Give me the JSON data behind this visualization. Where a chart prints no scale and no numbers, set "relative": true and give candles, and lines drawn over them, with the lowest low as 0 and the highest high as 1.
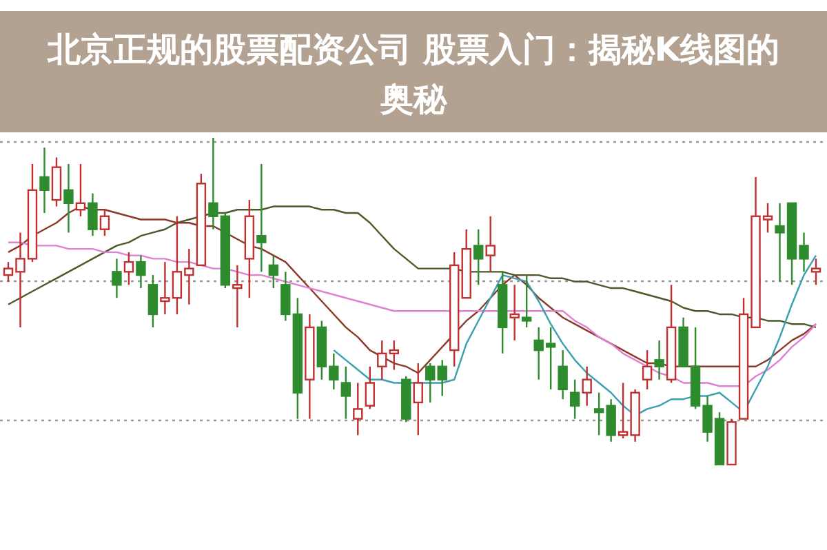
{
  "chart_data": {
    "type": "candlestick",
    "title": "北京正规的股票配资公司 股票入门：揭秘K线图的奥秘",
    "relative": true,
    "grid": true,
    "categories": [
      null,
      null,
      null,
      null,
      null,
      null,
      null,
      null,
      null,
      null,
      null,
      null,
      null,
      null,
      null,
      null,
      null,
      null,
      null,
      null,
      null,
      null,
      null,
      null,
      null,
      null,
      null,
      null,
      null,
      null,
      null,
      null,
      null,
      null,
      null,
      null,
      null,
      null,
      null,
      null,
      null,
      null,
      null,
      null,
      null,
      null,
      null,
      null,
      null,
      null,
      null,
      null,
      null,
      null,
      null,
      null,
      null,
      null,
      null,
      null,
      null,
      null,
      null,
      null,
      null,
      null,
      null,
      null
    ],
    "ohlc": [
      [
        0.58,
        0.62,
        0.56,
        0.6
      ],
      [
        0.59,
        0.71,
        0.42,
        0.63
      ],
      [
        0.63,
        0.92,
        0.62,
        0.84
      ],
      [
        0.88,
        0.97,
        0.77,
        0.84
      ],
      [
        0.81,
        0.94,
        0.79,
        0.91
      ],
      [
        0.84,
        0.92,
        0.71,
        0.8
      ],
      [
        0.78,
        0.92,
        0.76,
        0.8
      ],
      [
        0.8,
        0.83,
        0.7,
        0.72
      ],
      [
        0.72,
        0.78,
        0.7,
        0.76
      ],
      [
        0.59,
        0.63,
        0.51,
        0.55
      ],
      [
        0.59,
        0.65,
        0.55,
        0.62
      ],
      [
        0.62,
        0.64,
        0.54,
        0.58
      ],
      [
        0.55,
        0.58,
        0.42,
        0.46
      ],
      [
        0.5,
        0.62,
        0.46,
        0.51
      ],
      [
        0.51,
        0.76,
        0.46,
        0.59
      ],
      [
        0.58,
        0.66,
        0.49,
        0.6
      ],
      [
        0.61,
        0.89,
        0.61,
        0.86
      ],
      [
        0.8,
        1.0,
        0.72,
        0.76
      ],
      [
        0.76,
        0.77,
        0.54,
        0.55
      ],
      [
        0.54,
        0.61,
        0.42,
        0.55
      ],
      [
        0.63,
        0.81,
        0.51,
        0.76
      ],
      [
        0.7,
        0.92,
        0.59,
        0.68
      ],
      [
        0.61,
        0.64,
        0.54,
        0.58
      ],
      [
        0.55,
        0.59,
        0.44,
        0.46
      ],
      [
        0.46,
        0.51,
        0.14,
        0.22
      ],
      [
        0.26,
        0.46,
        0.14,
        0.42
      ],
      [
        0.42,
        0.44,
        0.26,
        0.3
      ],
      [
        0.3,
        0.34,
        0.23,
        0.26
      ],
      [
        0.25,
        0.3,
        0.14,
        0.21
      ],
      [
        0.14,
        0.25,
        0.09,
        0.17
      ],
      [
        0.18,
        0.3,
        0.17,
        0.25
      ],
      [
        0.3,
        0.38,
        0.26,
        0.34
      ],
      [
        0.34,
        0.38,
        0.29,
        0.35
      ],
      [
        0.26,
        0.27,
        0.13,
        0.14
      ],
      [
        0.19,
        0.31,
        0.09,
        0.25
      ],
      [
        0.3,
        0.31,
        0.19,
        0.26
      ],
      [
        0.3,
        0.32,
        0.21,
        0.26
      ],
      [
        0.35,
        0.65,
        0.3,
        0.61
      ],
      [
        0.51,
        0.72,
        0.51,
        0.66
      ],
      [
        0.67,
        0.72,
        0.55,
        0.63
      ],
      [
        0.64,
        0.76,
        0.59,
        0.67
      ],
      [
        0.55,
        0.59,
        0.34,
        0.42
      ],
      [
        0.45,
        0.55,
        0.38,
        0.46
      ],
      [
        0.45,
        0.58,
        0.42,
        0.44
      ],
      [
        0.38,
        0.42,
        0.26,
        0.35
      ],
      [
        0.37,
        0.42,
        0.23,
        0.36
      ],
      [
        0.3,
        0.35,
        0.2,
        0.23
      ],
      [
        0.22,
        0.26,
        0.14,
        0.18
      ],
      [
        0.22,
        0.3,
        0.18,
        0.26
      ],
      [
        0.17,
        0.22,
        0.09,
        0.16
      ],
      [
        0.18,
        0.2,
        0.07,
        0.09
      ],
      [
        0.09,
        0.25,
        0.08,
        0.1
      ],
      [
        0.09,
        0.23,
        0.07,
        0.22
      ],
      [
        0.26,
        0.35,
        0.23,
        0.3
      ],
      [
        0.32,
        0.38,
        0.26,
        0.3
      ],
      [
        0.26,
        0.55,
        0.25,
        0.42
      ],
      [
        0.42,
        0.45,
        0.3,
        0.3
      ],
      [
        0.3,
        0.42,
        0.17,
        0.18
      ],
      [
        0.18,
        0.21,
        0.07,
        0.1
      ],
      [
        0.14,
        0.16,
        0,
        0
      ],
      [
        0,
        0.14,
        0,
        0.13
      ],
      [
        0.14,
        0.51,
        0.14,
        0.46
      ],
      [
        0.42,
        0.88,
        0.42,
        0.76
      ],
      [
        0.75,
        0.8,
        0.71,
        0.76
      ],
      [
        0.73,
        0.8,
        0.56,
        0.71
      ],
      [
        0.8,
        0.8,
        0.55,
        0.63
      ],
      [
        0.67,
        0.71,
        0.59,
        0.63
      ],
      [
        0.59,
        0.63,
        0.55,
        0.6
      ]
    ],
    "colors": [
      "#c03030",
      "#c03030",
      "#c03030",
      "#2e8b2e",
      "#c03030",
      "#2e8b2e",
      "#c03030",
      "#2e8b2e",
      "#c03030",
      "#2e8b2e",
      "#c03030",
      "#2e8b2e",
      "#2e8b2e",
      "#c03030",
      "#c03030",
      "#c03030",
      "#c03030",
      "#2e8b2e",
      "#2e8b2e",
      "#c03030",
      "#c03030",
      "#2e8b2e",
      "#2e8b2e",
      "#2e8b2e",
      "#2e8b2e",
      "#c03030",
      "#2e8b2e",
      "#2e8b2e",
      "#2e8b2e",
      "#c03030",
      "#c03030",
      "#c03030",
      "#c03030",
      "#2e8b2e",
      "#c03030",
      "#2e8b2e",
      "#2e8b2e",
      "#c03030",
      "#c03030",
      "#2e8b2e",
      "#c03030",
      "#2e8b2e",
      "#c03030",
      "#2e8b2e",
      "#2e8b2e",
      "#2e8b2e",
      "#2e8b2e",
      "#2e8b2e",
      "#c03030",
      "#2e8b2e",
      "#2e8b2e",
      "#c03030",
      "#c03030",
      "#c03030",
      "#2e8b2e",
      "#c03030",
      "#2e8b2e",
      "#2e8b2e",
      "#2e8b2e",
      "#2e8b2e",
      "#c03030",
      "#c03030",
      "#c03030",
      "#c03030",
      "#2e8b2e",
      "#2e8b2e",
      "#2e8b2e",
      "#c03030"
    ],
    "series": [
      {
        "type": "line",
        "color": "#4a5a2a",
        "values": [
          0.49,
          0.51,
          0.53,
          0.55,
          0.57,
          0.59,
          0.61,
          0.63,
          0.65,
          0.67,
          0.68,
          0.7,
          0.71,
          0.72,
          0.74,
          0.75,
          0.76,
          0.77,
          0.77,
          0.78,
          0.78,
          0.78,
          0.79,
          0.79,
          0.79,
          0.79,
          0.78,
          0.78,
          0.77,
          0.77,
          0.74,
          0.7,
          0.66,
          0.63,
          0.6,
          0.6,
          0.6,
          0.6,
          0.59,
          0.59,
          0.59,
          0.59,
          0.58,
          0.58,
          0.58,
          0.57,
          0.57,
          0.56,
          0.56,
          0.55,
          0.54,
          0.54,
          0.53,
          0.52,
          0.51,
          0.5,
          0.48,
          0.47,
          0.47,
          0.46,
          0.46,
          0.45,
          0.45,
          0.44,
          0.44,
          0.43,
          0.43,
          0.42
        ]
      },
      {
        "type": "line",
        "color": "#8b3a2a",
        "values": [
          0.65,
          0.67,
          0.7,
          0.72,
          0.74,
          0.77,
          0.79,
          0.78,
          0.78,
          0.77,
          0.76,
          0.75,
          0.75,
          0.75,
          0.74,
          0.74,
          0.73,
          0.73,
          0.71,
          0.69,
          0.67,
          0.66,
          0.64,
          0.62,
          0.58,
          0.54,
          0.5,
          0.46,
          0.42,
          0.39,
          0.35,
          0.33,
          0.31,
          0.3,
          0.28,
          0.32,
          0.36,
          0.4,
          0.44,
          0.47,
          0.51,
          0.55,
          0.58,
          0.55,
          0.51,
          0.48,
          0.45,
          0.43,
          0.41,
          0.39,
          0.37,
          0.35,
          0.33,
          0.31,
          0.31,
          0.3,
          0.3,
          0.3,
          0.3,
          0.3,
          0.3,
          0.3,
          0.3,
          0.32,
          0.35,
          0.38,
          0.4,
          0.43
        ]
      },
      {
        "type": "line",
        "color": "#e080d0",
        "values": [
          0.68,
          0.68,
          0.67,
          0.67,
          0.67,
          0.66,
          0.66,
          0.66,
          0.65,
          0.65,
          0.64,
          0.64,
          0.63,
          0.63,
          0.62,
          0.62,
          0.61,
          0.6,
          0.6,
          0.59,
          0.58,
          0.58,
          0.57,
          0.56,
          0.55,
          0.54,
          0.53,
          0.52,
          0.51,
          0.5,
          0.49,
          0.48,
          0.47,
          0.47,
          0.47,
          0.47,
          0.47,
          0.47,
          0.47,
          0.47,
          0.47,
          0.47,
          0.47,
          0.47,
          0.47,
          0.47,
          0.47,
          0.44,
          0.42,
          0.39,
          0.37,
          0.34,
          0.32,
          0.3,
          0.28,
          0.27,
          0.25,
          0.25,
          0.25,
          0.24,
          0.24,
          0.24,
          0.27,
          0.29,
          0.32,
          0.36,
          0.39,
          0.43
        ]
      },
      {
        "type": "line",
        "color": "#3aa0b0",
        "values": [
          null,
          null,
          null,
          null,
          null,
          null,
          null,
          null,
          null,
          null,
          null,
          null,
          null,
          null,
          null,
          null,
          null,
          null,
          null,
          null,
          null,
          null,
          null,
          null,
          null,
          null,
          null,
          0.35,
          0.32,
          0.29,
          0.26,
          0.26,
          0.25,
          0.25,
          0.25,
          0.25,
          0.25,
          0.26,
          0.37,
          0.44,
          0.51,
          0.58,
          0.57,
          0.56,
          0.5,
          0.43,
          0.37,
          0.32,
          0.28,
          0.25,
          0.22,
          0.18,
          0.15,
          0.17,
          0.18,
          0.2,
          0.2,
          0.21,
          0.21,
          0.22,
          0.19,
          0.16,
          0.23,
          0.3,
          0.39,
          0.49,
          0.58,
          0.64
        ]
      }
    ]
  }
}
